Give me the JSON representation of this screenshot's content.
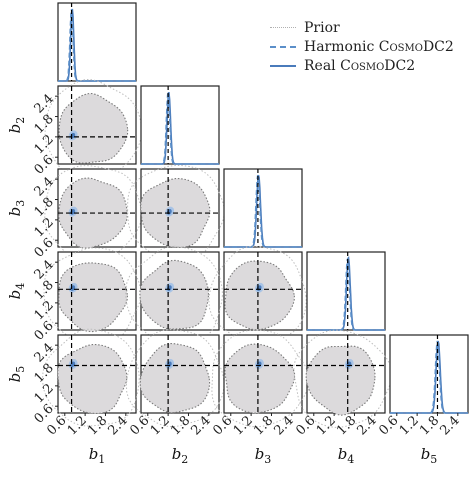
{
  "chart_data": {
    "type": "corner",
    "parameters": [
      "b1",
      "b2",
      "b3",
      "b4",
      "b5"
    ],
    "parameter_labels": [
      "b",
      "b",
      "b",
      "b",
      "b"
    ],
    "parameter_subscripts": [
      "1",
      "2",
      "3",
      "4",
      "5"
    ],
    "truth_values": [
      0.8,
      1.2,
      1.4,
      1.6,
      1.8
    ],
    "axis_range": [
      0.4,
      2.7
    ],
    "tick_values": [
      0.6,
      1.2,
      1.8,
      2.4
    ],
    "tick_labels": [
      "0.6",
      "1.2",
      "1.8",
      "2.4"
    ],
    "legend": {
      "placement": "top-right",
      "entries": [
        {
          "label": "Prior",
          "style": "dotted",
          "color": "#b0b0b0"
        },
        {
          "label_prefix": "Harmonic ",
          "label_sc": "CosmoDC2",
          "style": "dashed",
          "color": "#5b8fc9"
        },
        {
          "label_prefix": "Real ",
          "label_sc": "CosmoDC2",
          "style": "solid",
          "color": "#4a7bbb"
        }
      ]
    },
    "posterior_sigma": [
      0.045,
      0.05,
      0.055,
      0.055,
      0.06
    ],
    "colors": {
      "prior_fill": "#dcdadc",
      "prior_edge": "#7a7a7a",
      "harmonic": "#5b8fc9",
      "real": "#4a7bbb",
      "truth": "#000000"
    }
  }
}
